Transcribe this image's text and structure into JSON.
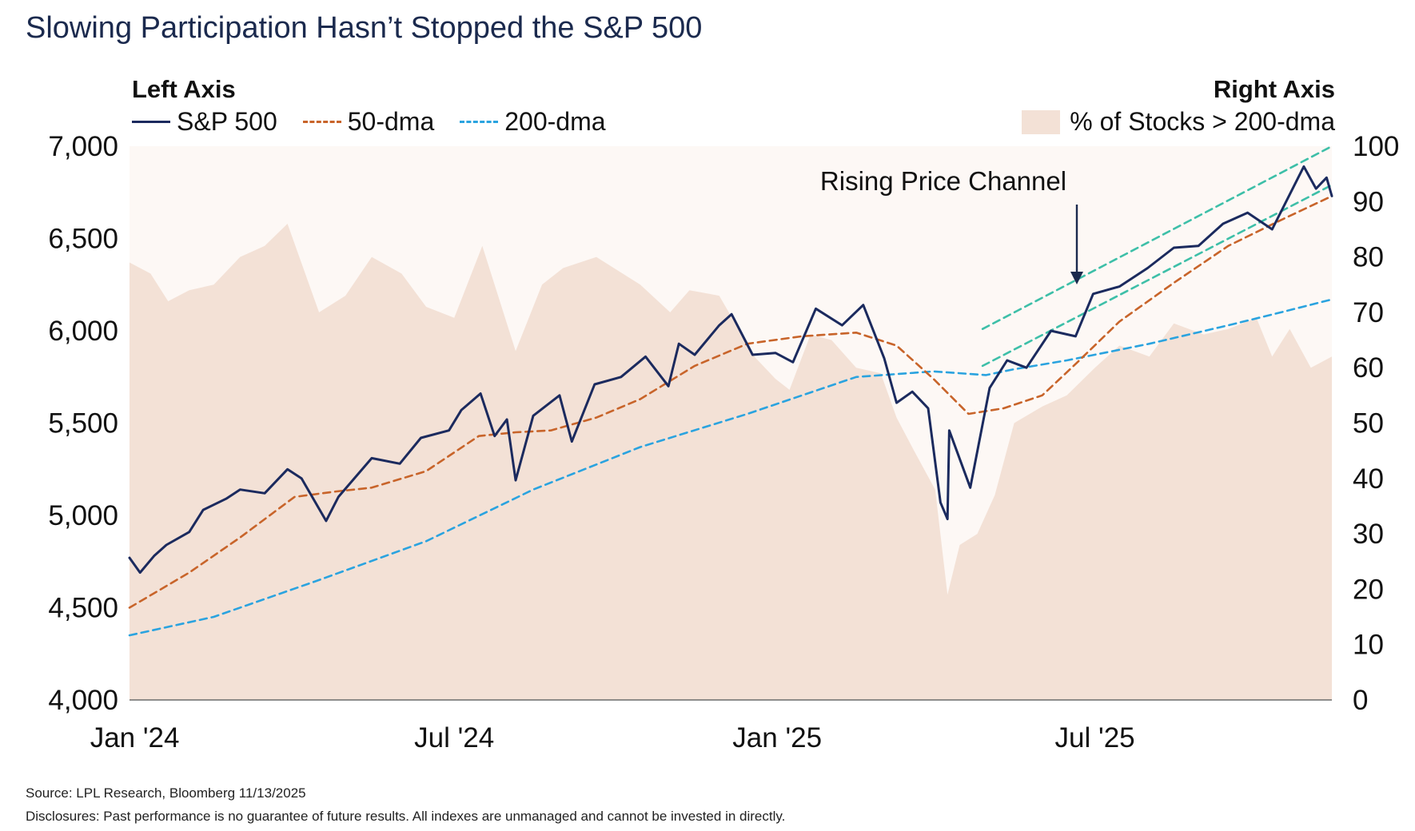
{
  "title": "Slowing Participation Hasn’t Stopped the S&P 500",
  "left_axis_label": "Left Axis",
  "right_axis_label": "Right Axis",
  "legend_left": [
    {
      "label": "S&P 500",
      "color": "#1b2a5e",
      "style": "solid"
    },
    {
      "label": "50-dma",
      "color": "#c8642a",
      "style": "dashed"
    },
    {
      "label": "200-dma",
      "color": "#2aa3df",
      "style": "dashed"
    }
  ],
  "legend_right": [
    {
      "label": "% of Stocks > 200-dma",
      "color": "#f3e1d6",
      "style": "area"
    }
  ],
  "annotation": "Rising Price Channel",
  "source": "Source: LPL Research, Bloomberg 11/13/2025",
  "disclosure": "Disclosures: Past performance is no guarantee of future results. All indexes are unmanaged and cannot be invested in directly.",
  "chart_data": {
    "type": "line",
    "title": "Slowing Participation Hasn’t Stopped the S&P 500",
    "x_ticks": [
      "Jan '24",
      "Jul '24",
      "Jan '25",
      "Jul '25"
    ],
    "x_tick_dates": [
      "2024-01-01",
      "2024-07-01",
      "2025-01-01",
      "2025-07-01"
    ],
    "xlim": [
      "2023-12-29",
      "2025-11-13"
    ],
    "y_left": {
      "ylim": [
        4000,
        7000
      ],
      "ticks": [
        "4,000",
        "4,500",
        "5,000",
        "5,500",
        "6,000",
        "6,500",
        "7,000"
      ],
      "tick_values": [
        4000,
        4500,
        5000,
        5500,
        6000,
        6500,
        7000
      ]
    },
    "y_right": {
      "ylim": [
        0,
        100
      ],
      "ticks": [
        "0",
        "10",
        "20",
        "30",
        "40",
        "50",
        "60",
        "70",
        "80",
        "90",
        "100"
      ],
      "tick_values": [
        0,
        10,
        20,
        30,
        40,
        50,
        60,
        70,
        80,
        90,
        100
      ]
    },
    "grid": false,
    "legend_position": "top",
    "series": [
      {
        "name": "S&P 500",
        "axis": "left",
        "style": "solid",
        "color": "#1b2a5e",
        "points": [
          [
            "2023-12-29",
            4770
          ],
          [
            "2024-01-04",
            4690
          ],
          [
            "2024-01-12",
            4780
          ],
          [
            "2024-01-19",
            4840
          ],
          [
            "2024-02-01",
            4910
          ],
          [
            "2024-02-09",
            5030
          ],
          [
            "2024-02-22",
            5090
          ],
          [
            "2024-03-01",
            5140
          ],
          [
            "2024-03-15",
            5120
          ],
          [
            "2024-03-28",
            5250
          ],
          [
            "2024-04-05",
            5200
          ],
          [
            "2024-04-19",
            4970
          ],
          [
            "2024-04-26",
            5100
          ],
          [
            "2024-05-15",
            5310
          ],
          [
            "2024-05-31",
            5280
          ],
          [
            "2024-06-12",
            5420
          ],
          [
            "2024-06-28",
            5460
          ],
          [
            "2024-07-05",
            5570
          ],
          [
            "2024-07-16",
            5660
          ],
          [
            "2024-07-24",
            5430
          ],
          [
            "2024-07-31",
            5520
          ],
          [
            "2024-08-05",
            5190
          ],
          [
            "2024-08-15",
            5540
          ],
          [
            "2024-08-30",
            5650
          ],
          [
            "2024-09-06",
            5400
          ],
          [
            "2024-09-19",
            5710
          ],
          [
            "2024-10-04",
            5750
          ],
          [
            "2024-10-18",
            5860
          ],
          [
            "2024-10-31",
            5700
          ],
          [
            "2024-11-06",
            5930
          ],
          [
            "2024-11-15",
            5870
          ],
          [
            "2024-11-29",
            6030
          ],
          [
            "2024-12-06",
            6090
          ],
          [
            "2024-12-18",
            5870
          ],
          [
            "2024-12-31",
            5880
          ],
          [
            "2025-01-10",
            5830
          ],
          [
            "2025-01-23",
            6120
          ],
          [
            "2025-02-07",
            6030
          ],
          [
            "2025-02-19",
            6140
          ],
          [
            "2025-03-03",
            5850
          ],
          [
            "2025-03-10",
            5610
          ],
          [
            "2025-03-19",
            5670
          ],
          [
            "2025-03-28",
            5580
          ],
          [
            "2025-04-04",
            5070
          ],
          [
            "2025-04-08",
            4980
          ],
          [
            "2025-04-09",
            5460
          ],
          [
            "2025-04-21",
            5150
          ],
          [
            "2025-05-02",
            5690
          ],
          [
            "2025-05-12",
            5840
          ],
          [
            "2025-05-23",
            5800
          ],
          [
            "2025-06-06",
            6000
          ],
          [
            "2025-06-20",
            5970
          ],
          [
            "2025-06-30",
            6200
          ],
          [
            "2025-07-15",
            6240
          ],
          [
            "2025-07-31",
            6340
          ],
          [
            "2025-08-15",
            6450
          ],
          [
            "2025-08-29",
            6460
          ],
          [
            "2025-09-12",
            6580
          ],
          [
            "2025-09-26",
            6640
          ],
          [
            "2025-10-10",
            6550
          ],
          [
            "2025-10-28",
            6890
          ],
          [
            "2025-11-04",
            6770
          ],
          [
            "2025-11-10",
            6830
          ],
          [
            "2025-11-13",
            6730
          ]
        ]
      },
      {
        "name": "50-dma",
        "axis": "left",
        "style": "dashed",
        "color": "#c8642a",
        "points": [
          [
            "2023-12-29",
            4500
          ],
          [
            "2024-02-01",
            4690
          ],
          [
            "2024-03-01",
            4880
          ],
          [
            "2024-04-01",
            5100
          ],
          [
            "2024-04-25",
            5130
          ],
          [
            "2024-05-15",
            5150
          ],
          [
            "2024-06-15",
            5240
          ],
          [
            "2024-07-15",
            5430
          ],
          [
            "2024-08-05",
            5450
          ],
          [
            "2024-08-25",
            5460
          ],
          [
            "2024-09-20",
            5530
          ],
          [
            "2024-10-15",
            5630
          ],
          [
            "2024-11-15",
            5810
          ],
          [
            "2024-12-15",
            5930
          ],
          [
            "2025-01-15",
            5970
          ],
          [
            "2025-02-15",
            5990
          ],
          [
            "2025-03-10",
            5920
          ],
          [
            "2025-03-31",
            5740
          ],
          [
            "2025-04-20",
            5550
          ],
          [
            "2025-05-10",
            5580
          ],
          [
            "2025-06-01",
            5650
          ],
          [
            "2025-06-20",
            5820
          ],
          [
            "2025-07-15",
            6050
          ],
          [
            "2025-08-15",
            6260
          ],
          [
            "2025-09-15",
            6460
          ],
          [
            "2025-10-15",
            6600
          ],
          [
            "2025-11-13",
            6730
          ]
        ]
      },
      {
        "name": "200-dma",
        "axis": "left",
        "style": "dashed",
        "color": "#2aa3df",
        "points": [
          [
            "2023-12-29",
            4350
          ],
          [
            "2024-02-15",
            4450
          ],
          [
            "2024-04-15",
            4650
          ],
          [
            "2024-06-15",
            4860
          ],
          [
            "2024-08-15",
            5140
          ],
          [
            "2024-10-15",
            5370
          ],
          [
            "2024-12-15",
            5550
          ],
          [
            "2025-02-15",
            5750
          ],
          [
            "2025-03-31",
            5780
          ],
          [
            "2025-04-30",
            5760
          ],
          [
            "2025-05-15",
            5790
          ],
          [
            "2025-06-15",
            5840
          ],
          [
            "2025-08-01",
            5930
          ],
          [
            "2025-09-15",
            6030
          ],
          [
            "2025-10-15",
            6100
          ],
          [
            "2025-11-13",
            6170
          ]
        ]
      },
      {
        "name": "% of Stocks > 200-dma",
        "axis": "right",
        "style": "area",
        "color": "#f3e1d6",
        "points": [
          [
            "2023-12-29",
            79
          ],
          [
            "2024-01-10",
            77
          ],
          [
            "2024-01-20",
            72
          ],
          [
            "2024-02-01",
            74
          ],
          [
            "2024-02-15",
            75
          ],
          [
            "2024-03-01",
            80
          ],
          [
            "2024-03-15",
            82
          ],
          [
            "2024-03-28",
            86
          ],
          [
            "2024-04-15",
            70
          ],
          [
            "2024-04-30",
            73
          ],
          [
            "2024-05-15",
            80
          ],
          [
            "2024-06-01",
            77
          ],
          [
            "2024-06-15",
            71
          ],
          [
            "2024-07-01",
            69
          ],
          [
            "2024-07-17",
            82
          ],
          [
            "2024-08-05",
            63
          ],
          [
            "2024-08-20",
            75
          ],
          [
            "2024-09-01",
            78
          ],
          [
            "2024-09-20",
            80
          ],
          [
            "2024-10-15",
            75
          ],
          [
            "2024-11-01",
            70
          ],
          [
            "2024-11-12",
            74
          ],
          [
            "2024-11-29",
            73
          ],
          [
            "2024-12-19",
            62
          ],
          [
            "2024-12-31",
            58
          ],
          [
            "2025-01-08",
            56
          ],
          [
            "2025-01-20",
            66
          ],
          [
            "2025-02-01",
            65
          ],
          [
            "2025-02-15",
            60
          ],
          [
            "2025-03-01",
            59
          ],
          [
            "2025-03-10",
            51
          ],
          [
            "2025-03-20",
            45
          ],
          [
            "2025-04-01",
            38
          ],
          [
            "2025-04-08",
            19
          ],
          [
            "2025-04-15",
            28
          ],
          [
            "2025-04-25",
            30
          ],
          [
            "2025-05-05",
            37
          ],
          [
            "2025-05-16",
            50
          ],
          [
            "2025-06-01",
            53
          ],
          [
            "2025-06-15",
            55
          ],
          [
            "2025-07-01",
            60
          ],
          [
            "2025-07-15",
            64
          ],
          [
            "2025-08-01",
            62
          ],
          [
            "2025-08-15",
            68
          ],
          [
            "2025-09-01",
            66
          ],
          [
            "2025-09-15",
            67
          ],
          [
            "2025-10-01",
            69
          ],
          [
            "2025-10-10",
            62
          ],
          [
            "2025-10-20",
            67
          ],
          [
            "2025-11-01",
            60
          ],
          [
            "2025-11-13",
            62
          ]
        ]
      },
      {
        "name": "channel-upper",
        "axis": "left",
        "style": "dashed",
        "color": "#3dbfa8",
        "points": [
          [
            "2025-04-28",
            6010
          ],
          [
            "2025-11-13",
            7000
          ]
        ]
      },
      {
        "name": "channel-lower",
        "axis": "left",
        "style": "dashed",
        "color": "#3dbfa8",
        "points": [
          [
            "2025-04-28",
            5810
          ],
          [
            "2025-11-13",
            6790
          ]
        ]
      }
    ]
  }
}
